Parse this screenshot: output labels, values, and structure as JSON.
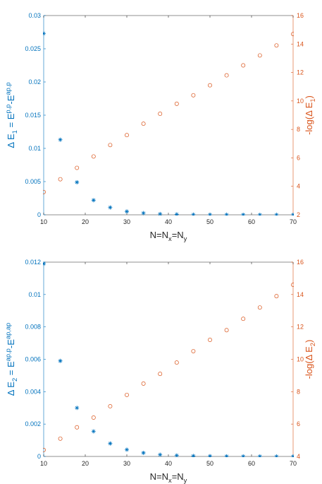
{
  "colors": {
    "left": "#0072BD",
    "right": "#D95319",
    "axes": "#262626"
  },
  "chart_data": [
    {
      "type": "scatter",
      "xlabel": "N=N_x=N_y",
      "ylabel_left": "Δ E_1 = E^{p,p}-E^{ap,p}",
      "ylabel_right": "-log(Δ E_1)",
      "xlim": [
        10,
        70
      ],
      "xticks": [
        "10",
        "20",
        "30",
        "40",
        "50",
        "60",
        "70"
      ],
      "ylim_left": [
        0,
        0.03
      ],
      "yticks_left": [
        "0",
        "0.005",
        "0.01",
        "0.015",
        "0.02",
        "0.025",
        "0.03"
      ],
      "ylim_right": [
        2,
        16
      ],
      "yticks_right": [
        "2",
        "4",
        "6",
        "8",
        "10",
        "12",
        "14",
        "16"
      ],
      "series": [
        {
          "axis": "left",
          "marker": "asterisk",
          "x": [
            10,
            14,
            18,
            22,
            26,
            30,
            34,
            38,
            42,
            46,
            50,
            54,
            58,
            62,
            66,
            70
          ],
          "y": [
            0.0273,
            0.0113,
            0.0049,
            0.0022,
            0.0011,
            0.0005,
            0.00025,
            0.00012,
            6e-05,
            3e-05,
            1.5e-05,
            8e-06,
            4e-06,
            2e-06,
            1e-06,
            4e-07
          ]
        },
        {
          "axis": "right",
          "marker": "circle",
          "x": [
            10,
            14,
            18,
            22,
            26,
            30,
            34,
            38,
            42,
            46,
            50,
            54,
            58,
            62,
            66,
            70
          ],
          "y": [
            3.6,
            4.5,
            5.3,
            6.1,
            6.9,
            7.6,
            8.4,
            9.1,
            9.8,
            10.4,
            11.1,
            11.8,
            12.5,
            13.2,
            13.9,
            14.7
          ]
        }
      ]
    },
    {
      "type": "scatter",
      "xlabel": "N=N_x=N_y",
      "ylabel_left": "Δ E_2 = E^{ap,p}-E^{ap,ap}",
      "ylabel_right": "-log(Δ E_2)",
      "xlim": [
        10,
        70
      ],
      "xticks": [
        "10",
        "20",
        "30",
        "40",
        "50",
        "60",
        "70"
      ],
      "ylim_left": [
        0,
        0.012
      ],
      "yticks_left": [
        "0",
        "0.002",
        "0.004",
        "0.006",
        "0.008",
        "0.01",
        "0.012"
      ],
      "ylim_right": [
        4,
        16
      ],
      "yticks_right": [
        "4",
        "6",
        "8",
        "10",
        "12",
        "14",
        "16"
      ],
      "series": [
        {
          "axis": "left",
          "marker": "asterisk",
          "x": [
            10,
            14,
            18,
            22,
            26,
            30,
            34,
            38,
            42,
            46,
            50,
            54,
            58,
            62,
            66,
            70
          ],
          "y": [
            0.0119,
            0.0059,
            0.003,
            0.00155,
            0.0008,
            0.00042,
            0.00022,
            0.00011,
            6e-05,
            3e-05,
            1.5e-05,
            8e-06,
            4e-06,
            2e-06,
            1e-06,
            5e-07
          ]
        },
        {
          "axis": "right",
          "marker": "circle",
          "x": [
            10,
            14,
            18,
            22,
            26,
            30,
            34,
            38,
            42,
            46,
            50,
            54,
            58,
            62,
            66,
            70
          ],
          "y": [
            4.4,
            5.1,
            5.8,
            6.4,
            7.1,
            7.8,
            8.5,
            9.1,
            9.8,
            10.5,
            11.2,
            11.8,
            12.5,
            13.2,
            13.9,
            14.6
          ]
        }
      ]
    }
  ]
}
